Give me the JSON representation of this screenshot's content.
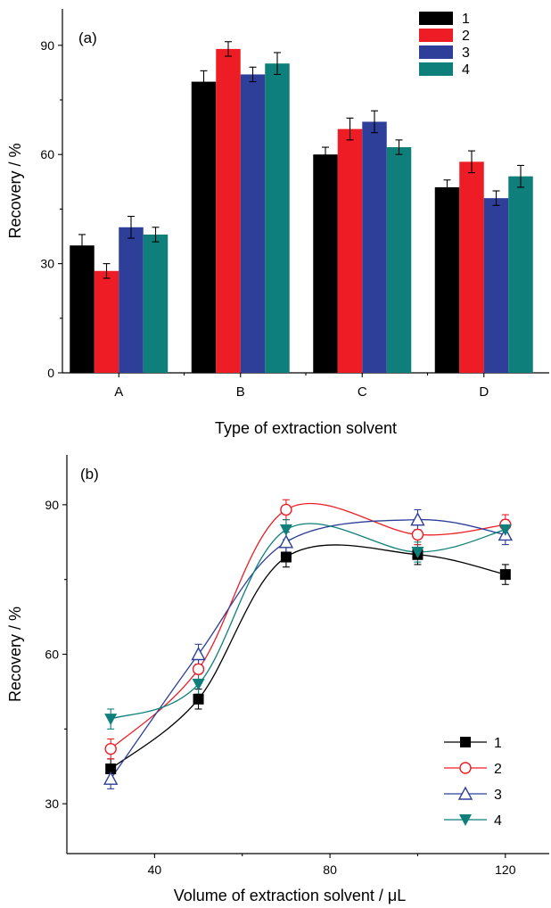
{
  "chart_data": [
    {
      "type": "bar",
      "panel_label": "(a)",
      "title": "",
      "xlabel": "Type of extraction solvent",
      "ylabel": "Recovery / %",
      "categories": [
        "A",
        "B",
        "C",
        "D"
      ],
      "ylim": [
        0,
        100
      ],
      "yticks": [
        0,
        30,
        60,
        90
      ],
      "grid": false,
      "legend_position": "top-right",
      "series": [
        {
          "name": "1",
          "color": "#000000",
          "values": [
            35,
            80,
            60,
            51
          ],
          "errors": [
            3,
            3,
            2,
            2
          ]
        },
        {
          "name": "2",
          "color": "#ee1c24",
          "values": [
            28,
            89,
            67,
            58
          ],
          "errors": [
            2,
            2,
            3,
            3
          ]
        },
        {
          "name": "3",
          "color": "#2e3f9a",
          "values": [
            40,
            82,
            69,
            48
          ],
          "errors": [
            3,
            2,
            3,
            2
          ]
        },
        {
          "name": "4",
          "color": "#0e7f7a",
          "values": [
            38,
            85,
            62,
            54
          ],
          "errors": [
            2,
            3,
            2,
            3
          ]
        }
      ]
    },
    {
      "type": "line",
      "panel_label": "(b)",
      "title": "",
      "xlabel": "Volume of extraction solvent / μL",
      "ylabel": "Recovery / %",
      "x": [
        30,
        50,
        70,
        100,
        120
      ],
      "xlim": [
        20,
        130
      ],
      "xticks": [
        40,
        80,
        120
      ],
      "ylim": [
        20,
        100
      ],
      "yticks": [
        30,
        60,
        90
      ],
      "grid": false,
      "legend_position": "bottom-right",
      "series": [
        {
          "name": "1",
          "color": "#000000",
          "marker": "filled-square",
          "values": [
            37,
            51,
            79.5,
            80,
            76
          ],
          "errors": [
            2,
            2,
            2,
            2,
            2
          ]
        },
        {
          "name": "2",
          "color": "#ee1c24",
          "marker": "open-circle",
          "values": [
            41,
            57,
            89,
            84,
            86
          ],
          "errors": [
            2,
            2,
            2,
            2,
            2
          ]
        },
        {
          "name": "3",
          "color": "#2e3f9a",
          "marker": "open-triangle-up",
          "values": [
            35,
            60,
            82.5,
            87,
            84
          ],
          "errors": [
            2,
            2,
            2,
            2,
            2
          ]
        },
        {
          "name": "4",
          "color": "#0e7f7a",
          "marker": "filled-triangle-down",
          "values": [
            47,
            54,
            85,
            80.5,
            85
          ],
          "errors": [
            2,
            2,
            2,
            2,
            2
          ]
        }
      ]
    }
  ]
}
